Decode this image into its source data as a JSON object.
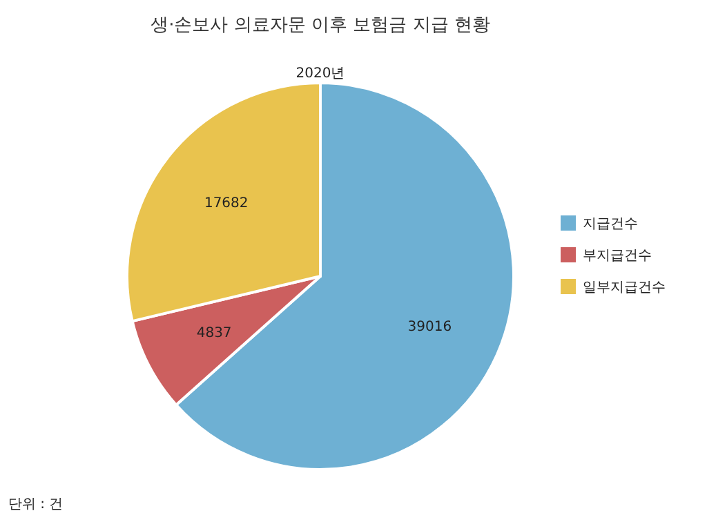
{
  "chart_data": {
    "type": "pie",
    "title": "생·손보사 의료자문 이후 보험금 지급 현황",
    "subtitle": "2020년",
    "categories": [
      "지급건수",
      "부지급건수",
      "일부지급건수"
    ],
    "values": [
      39016,
      4837,
      17682
    ],
    "colors": [
      "#6eb0d3",
      "#cc5f5f",
      "#e9c34e"
    ],
    "data_labels": true,
    "legend": "right",
    "annotations": [
      "단위 : 건"
    ]
  }
}
